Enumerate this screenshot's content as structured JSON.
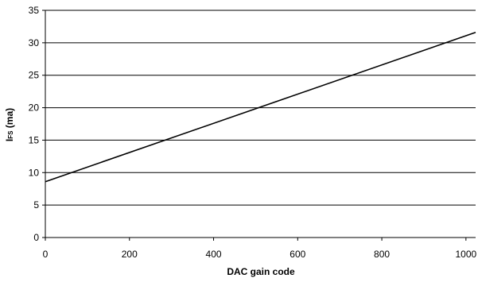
{
  "chart_data": {
    "type": "line",
    "xlabel": "DAC gain code",
    "ylabel_main": "I",
    "ylabel_sub": "FS",
    "ylabel_suffix": " (ma)",
    "xlim": [
      0,
      1023
    ],
    "ylim": [
      0,
      35
    ],
    "x_ticks": [
      0,
      200,
      400,
      600,
      800,
      1000
    ],
    "y_ticks": [
      0,
      5,
      10,
      15,
      20,
      25,
      30,
      35
    ],
    "grid": "horizontal",
    "legend": "none",
    "series": [
      {
        "color": "#000000",
        "x": [
          0,
          1023
        ],
        "y": [
          8.6,
          31.6
        ]
      }
    ]
  }
}
